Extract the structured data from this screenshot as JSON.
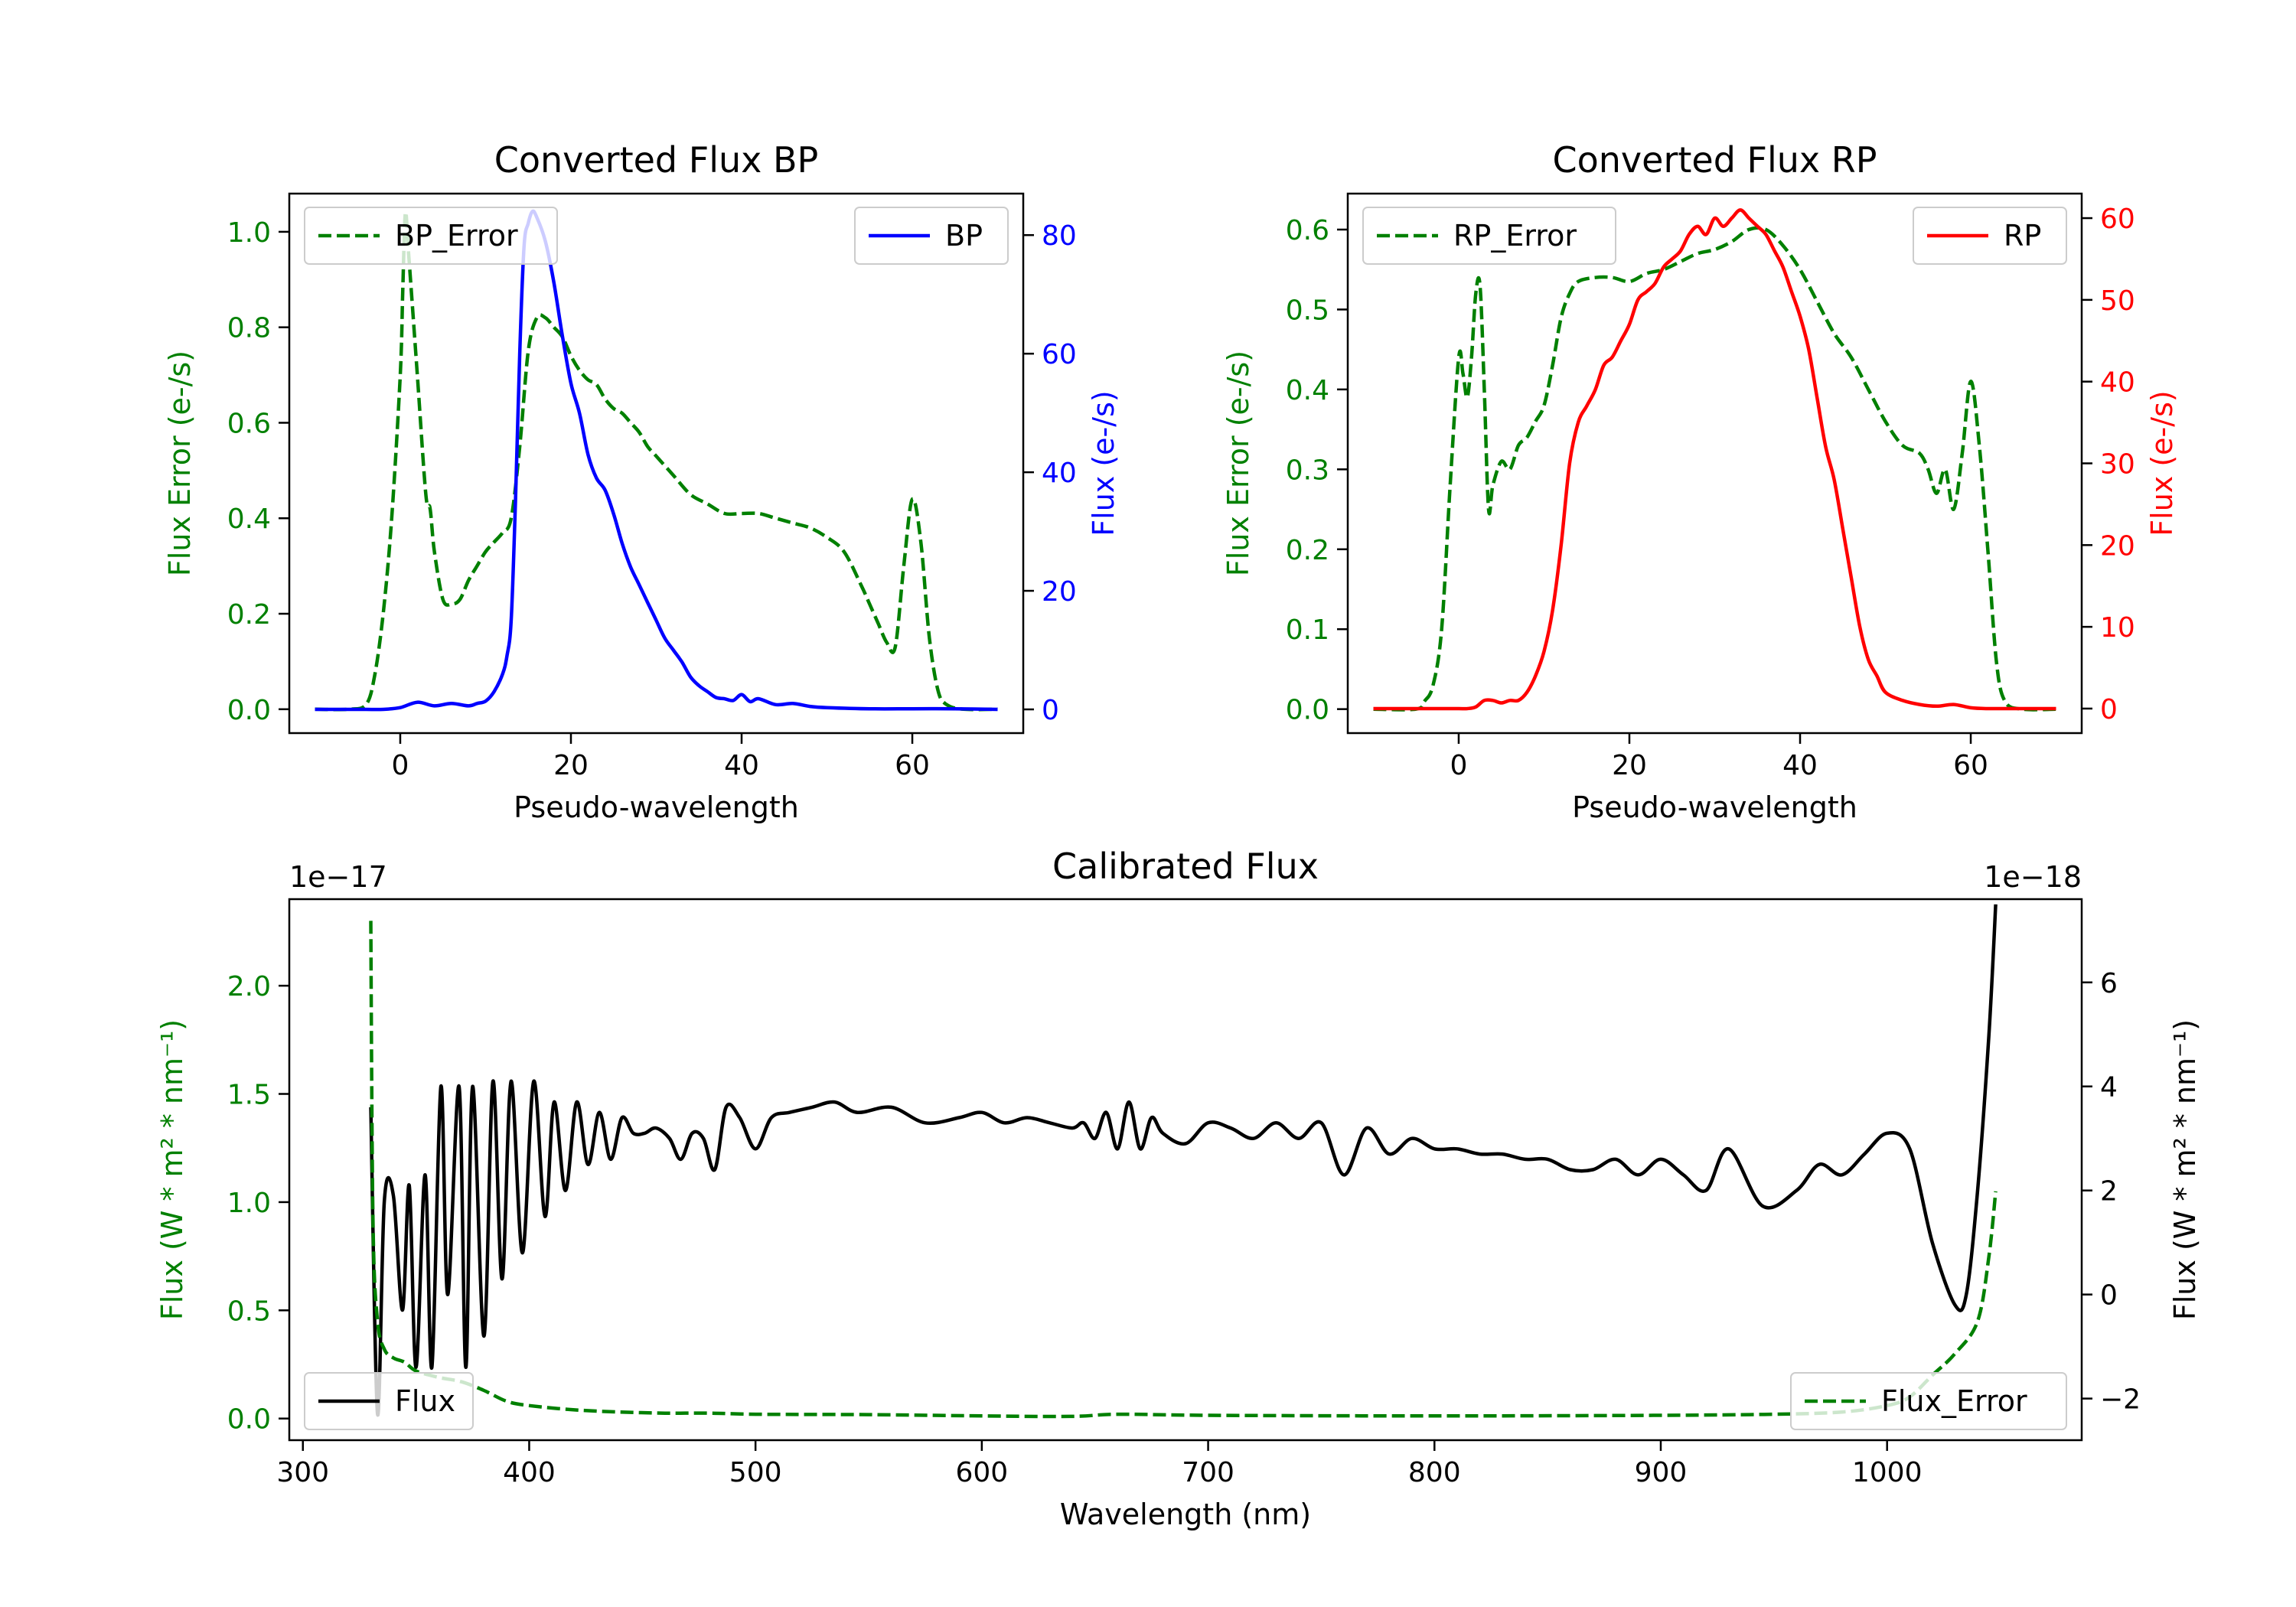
{
  "chart_data": [
    {
      "id": "bp",
      "type": "line",
      "title": "Converted Flux BP",
      "xlabel": "Pseudo-wavelength",
      "ylabel_left": "Flux Error (e-/s)",
      "ylabel_right": "Flux (e-/s)",
      "xlim": [
        -13,
        73
      ],
      "ylim_left": [
        -0.05,
        1.08
      ],
      "ylim_right": [
        -4,
        87
      ],
      "xticks": [
        0,
        20,
        40,
        60
      ],
      "yticks_left": [
        0.0,
        0.2,
        0.4,
        0.6,
        0.8,
        1.0
      ],
      "yticks_right": [
        0,
        20,
        40,
        60,
        80
      ],
      "legend_left": "BP_Error",
      "legend_right": "BP",
      "colors": {
        "error": "#008000",
        "flux": "#0000ff"
      },
      "series": [
        {
          "name": "BP_Error",
          "axis": "left",
          "style": "dashed",
          "x": [
            -10,
            -6,
            -4,
            -3,
            -2,
            -1,
            0,
            0.3,
            0.6,
            1,
            2,
            3,
            3.5,
            4,
            5,
            6,
            7,
            8,
            9,
            10,
            11,
            12,
            13,
            14,
            15,
            16,
            17,
            18,
            19,
            20,
            21,
            22,
            23,
            24,
            25,
            26,
            27,
            28,
            29,
            30,
            32,
            34,
            36,
            38,
            40,
            42,
            44,
            46,
            48,
            50,
            52,
            54,
            55,
            56,
            57,
            58,
            59,
            60,
            61,
            62,
            63,
            64,
            66,
            70
          ],
          "y": [
            0.0,
            0.0,
            0.01,
            0.07,
            0.2,
            0.4,
            0.7,
            0.88,
            1.04,
            0.95,
            0.7,
            0.45,
            0.42,
            0.33,
            0.23,
            0.22,
            0.23,
            0.27,
            0.3,
            0.33,
            0.35,
            0.37,
            0.4,
            0.55,
            0.75,
            0.82,
            0.82,
            0.8,
            0.78,
            0.74,
            0.71,
            0.69,
            0.68,
            0.65,
            0.63,
            0.62,
            0.6,
            0.58,
            0.55,
            0.53,
            0.49,
            0.45,
            0.43,
            0.41,
            0.41,
            0.41,
            0.4,
            0.39,
            0.38,
            0.36,
            0.33,
            0.26,
            0.22,
            0.18,
            0.14,
            0.13,
            0.3,
            0.44,
            0.35,
            0.15,
            0.04,
            0.01,
            0.0,
            0.0
          ]
        },
        {
          "name": "BP",
          "axis": "right",
          "style": "solid",
          "x": [
            -10,
            -6,
            -4,
            -2,
            0,
            2,
            4,
            6,
            8,
            9,
            10,
            11,
            12,
            12.5,
            13,
            13.5,
            14,
            14.5,
            15,
            15.5,
            16,
            17,
            18,
            19,
            20,
            21,
            22,
            23,
            24,
            25,
            26,
            27,
            28,
            29,
            30,
            31,
            32,
            33,
            34,
            35,
            36,
            37,
            38,
            39,
            40,
            41,
            42,
            44,
            46,
            48,
            50,
            55,
            60,
            65,
            70
          ],
          "y": [
            0,
            0,
            0,
            0,
            0.3,
            1.2,
            0.6,
            1,
            0.6,
            1,
            1.4,
            3,
            6,
            9,
            15,
            35,
            60,
            78,
            82,
            84,
            83,
            79,
            72,
            63,
            55,
            50,
            43,
            39,
            37,
            33,
            28,
            24,
            21,
            18,
            15,
            12,
            10,
            8,
            5.5,
            4,
            3,
            2,
            1.8,
            1.5,
            2.5,
            1.3,
            1.8,
            0.8,
            1,
            0.5,
            0.3,
            0.1,
            0.1,
            0.1,
            0
          ]
        }
      ]
    },
    {
      "id": "rp",
      "type": "line",
      "title": "Converted Flux RP",
      "xlabel": "Pseudo-wavelength",
      "ylabel_left": "Flux Error (e-/s)",
      "ylabel_right": "Flux (e-/s)",
      "xlim": [
        -13,
        73
      ],
      "ylim_left": [
        -0.03,
        0.645
      ],
      "ylim_right": [
        -3,
        63
      ],
      "xticks": [
        0,
        20,
        40,
        60
      ],
      "yticks_left": [
        0.0,
        0.1,
        0.2,
        0.3,
        0.4,
        0.5,
        0.6
      ],
      "yticks_right": [
        0,
        10,
        20,
        30,
        40,
        50,
        60
      ],
      "legend_left": "RP_Error",
      "legend_right": "RP",
      "colors": {
        "error": "#008000",
        "flux": "#ff0000"
      },
      "series": [
        {
          "name": "RP_Error",
          "axis": "left",
          "style": "dashed",
          "x": [
            -10,
            -5,
            -4,
            -3,
            -2,
            -1,
            0,
            0.5,
            1,
            1.5,
            2,
            2.5,
            3,
            3.5,
            4,
            5,
            6,
            7,
            8,
            9,
            10,
            11,
            12,
            13,
            14,
            16,
            18,
            20,
            22,
            24,
            26,
            28,
            30,
            32,
            34,
            36,
            38,
            40,
            42,
            44,
            46,
            48,
            50,
            52,
            54,
            55,
            56,
            57,
            58,
            59,
            60,
            61,
            62,
            63,
            64,
            66,
            70
          ],
          "y": [
            0.0,
            0.0,
            0.01,
            0.03,
            0.1,
            0.28,
            0.44,
            0.42,
            0.39,
            0.44,
            0.52,
            0.53,
            0.4,
            0.25,
            0.28,
            0.31,
            0.3,
            0.33,
            0.34,
            0.36,
            0.38,
            0.43,
            0.49,
            0.52,
            0.535,
            0.54,
            0.54,
            0.535,
            0.545,
            0.55,
            0.56,
            0.57,
            0.575,
            0.585,
            0.6,
            0.6,
            0.58,
            0.55,
            0.51,
            0.47,
            0.44,
            0.4,
            0.36,
            0.33,
            0.32,
            0.3,
            0.27,
            0.3,
            0.25,
            0.32,
            0.41,
            0.33,
            0.2,
            0.06,
            0.01,
            0.0,
            0.0
          ]
        },
        {
          "name": "RP",
          "axis": "right",
          "style": "solid",
          "x": [
            -10,
            -5,
            -2,
            0,
            1,
            2,
            3,
            4,
            5,
            6,
            7,
            8,
            9,
            10,
            11,
            12,
            13,
            14,
            15,
            16,
            17,
            18,
            19,
            20,
            21,
            22,
            23,
            24,
            25,
            26,
            27,
            28,
            29,
            30,
            31,
            32,
            33,
            34,
            35,
            36,
            37,
            38,
            39,
            40,
            41,
            42,
            43,
            44,
            45,
            46,
            47,
            48,
            49,
            50,
            52,
            54,
            56,
            58,
            60,
            62,
            66,
            70
          ],
          "y": [
            0,
            0,
            0,
            0,
            0,
            0.2,
            1,
            1,
            0.7,
            1,
            1,
            2,
            4,
            7,
            12,
            20,
            30,
            35,
            37,
            39,
            42,
            43,
            45,
            47,
            50,
            51,
            52,
            54,
            55,
            56,
            58,
            59,
            58,
            60,
            59,
            60,
            61,
            60,
            59,
            58,
            56,
            54,
            51,
            48,
            44,
            38,
            32,
            28,
            22,
            16,
            10,
            6,
            4,
            2,
            1,
            0.5,
            0.3,
            0.5,
            0.1,
            0,
            0,
            0
          ]
        }
      ]
    },
    {
      "id": "cal",
      "type": "line",
      "title": "Calibrated Flux",
      "xlabel": "Wavelength (nm)",
      "ylabel_left": "Flux (W * m² * nm⁻¹)",
      "ylabel_right": "Flux (W * m² * nm⁻¹)",
      "offset_left": "1e−17",
      "offset_right": "1e−18",
      "xlim": [
        294,
        1086
      ],
      "ylim_left": [
        -0.1,
        2.4
      ],
      "ylim_right": [
        -2.8,
        7.6
      ],
      "xticks": [
        300,
        400,
        500,
        600,
        700,
        800,
        900,
        1000
      ],
      "yticks_left": [
        0.0,
        0.5,
        1.0,
        1.5,
        2.0
      ],
      "yticks_right": [
        -2,
        0,
        2,
        4,
        6
      ],
      "legend_left": "Flux",
      "legend_right": "Flux_Error",
      "colors": {
        "error": "#008000",
        "flux": "#000000"
      },
      "series": [
        {
          "name": "Flux",
          "axis": "right",
          "style": "solid",
          "x": [
            330,
            333,
            336,
            340,
            344,
            347,
            350,
            354,
            357,
            361,
            364,
            369,
            372,
            375,
            380,
            384,
            388,
            392,
            397,
            402,
            407,
            411,
            416,
            421,
            426,
            431,
            436,
            441,
            446,
            451,
            456,
            462,
            467,
            472,
            477,
            482,
            487,
            493,
            500,
            507,
            515,
            525,
            535,
            545,
            560,
            575,
            590,
            600,
            610,
            620,
            630,
            640,
            645,
            650,
            655,
            660,
            665,
            670,
            675,
            680,
            690,
            700,
            710,
            720,
            730,
            740,
            750,
            760,
            770,
            780,
            790,
            800,
            810,
            820,
            830,
            840,
            850,
            860,
            870,
            880,
            890,
            900,
            910,
            920,
            930,
            945,
            960,
            970,
            980,
            990,
            1000,
            1010,
            1020,
            1030,
            1035,
            1040,
            1045,
            1048
          ],
          "y": [
            3.6,
            -2.3,
            1.8,
            1.9,
            -0.3,
            2.1,
            -1.4,
            2.3,
            -1.4,
            4.0,
            0.0,
            4.0,
            -1.4,
            4.0,
            -0.8,
            4.1,
            0.3,
            4.1,
            0.8,
            4.1,
            1.5,
            3.7,
            2.0,
            3.7,
            2.5,
            3.5,
            2.6,
            3.4,
            3.1,
            3.1,
            3.2,
            3.0,
            2.6,
            3.1,
            3.0,
            2.4,
            3.6,
            3.4,
            2.8,
            3.4,
            3.5,
            3.6,
            3.7,
            3.5,
            3.6,
            3.3,
            3.4,
            3.5,
            3.3,
            3.4,
            3.3,
            3.2,
            3.3,
            3.0,
            3.5,
            2.8,
            3.7,
            2.8,
            3.4,
            3.1,
            2.9,
            3.3,
            3.2,
            3.0,
            3.3,
            3.0,
            3.3,
            2.3,
            3.2,
            2.7,
            3.0,
            2.8,
            2.8,
            2.7,
            2.7,
            2.6,
            2.6,
            2.4,
            2.4,
            2.6,
            2.3,
            2.6,
            2.3,
            2.0,
            2.8,
            1.7,
            2.0,
            2.5,
            2.3,
            2.7,
            3.1,
            2.8,
            1.0,
            -0.2,
            0.0,
            2.0,
            5.0,
            7.5
          ]
        },
        {
          "name": "Flux_Error",
          "axis": "left",
          "style": "dashed",
          "x": [
            330,
            331,
            333,
            336,
            340,
            345,
            350,
            360,
            370,
            380,
            390,
            400,
            420,
            440,
            460,
            480,
            500,
            550,
            600,
            640,
            660,
            700,
            800,
            900,
            950,
            980,
            1000,
            1010,
            1020,
            1030,
            1040,
            1045,
            1048
          ],
          "y": [
            2.3,
            0.9,
            0.45,
            0.32,
            0.28,
            0.26,
            0.22,
            0.19,
            0.17,
            0.13,
            0.08,
            0.06,
            0.04,
            0.03,
            0.025,
            0.025,
            0.02,
            0.018,
            0.012,
            0.01,
            0.02,
            0.015,
            0.012,
            0.015,
            0.02,
            0.03,
            0.06,
            0.1,
            0.2,
            0.3,
            0.45,
            0.75,
            1.05
          ]
        }
      ]
    }
  ]
}
